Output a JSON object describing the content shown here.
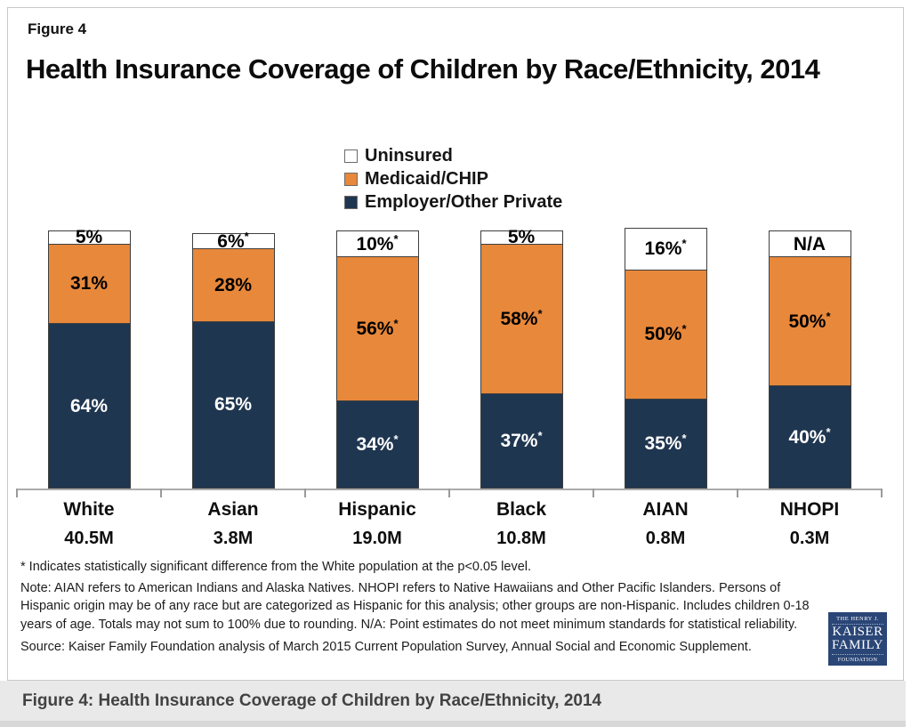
{
  "header": {
    "figure_label": "Figure 4",
    "title": "Health Insurance Coverage of Children by Race/Ethnicity, 2014"
  },
  "legend": {
    "items": [
      {
        "label": "Uninsured",
        "color": "#FFFFFF"
      },
      {
        "label": "Medicaid/CHIP",
        "color": "#E8883B"
      },
      {
        "label": "Employer/Other Private",
        "color": "#1F3650"
      }
    ]
  },
  "chart_data": {
    "type": "bar",
    "stacked": true,
    "title": "Health Insurance Coverage of Children by Race/Ethnicity, 2014",
    "unit": "percent of children",
    "categories": [
      "White",
      "Asian",
      "Hispanic",
      "Black",
      "AIAN",
      "NHOPI"
    ],
    "category_populations": [
      "40.5M",
      "3.8M",
      "19.0M",
      "10.8M",
      "0.8M",
      "0.3M"
    ],
    "series": [
      {
        "name": "Employer/Other Private",
        "color": "#1F3650",
        "label_color": "#FFFFFF",
        "values": [
          64,
          65,
          34,
          37,
          35,
          40
        ],
        "labels": [
          "64%",
          "65%",
          "34%*",
          "37%*",
          "35%*",
          "40%*"
        ]
      },
      {
        "name": "Medicaid/CHIP",
        "color": "#E8883B",
        "label_color": "#000000",
        "values": [
          31,
          28,
          56,
          58,
          50,
          50
        ],
        "labels": [
          "31%",
          "28%",
          "56%*",
          "58%*",
          "50%*",
          "50%*"
        ]
      },
      {
        "name": "Uninsured",
        "color": "#FFFFFF",
        "label_color": "#000000",
        "values": [
          5,
          6,
          10,
          5,
          16,
          null
        ],
        "labels": [
          "5%",
          "6%*",
          "10%*",
          "5%",
          "16%*",
          "N/A"
        ]
      }
    ],
    "na_bar_height_pct": 10,
    "ylim": [
      0,
      100
    ],
    "gridlines": false,
    "legend_position": "top-center",
    "annotation_star_meaning": "* Indicates statistically significant difference from the White population at the p<0.05 level."
  },
  "footnotes": {
    "star": "* Indicates statistically significant difference from the White population at the p<0.05 level.",
    "note": "Note: AIAN refers to American Indians and Alaska Natives. NHOPI refers to Native Hawaiians and Other Pacific Islanders. Persons of Hispanic origin may be of any race but are categorized as Hispanic for this analysis; other groups are non-Hispanic. Includes children 0-18 years of age. Totals may not sum to 100% due to rounding. N/A: Point estimates do not meet minimum standards for statistical reliability.",
    "source": "Source: Kaiser Family Foundation analysis of March 2015 Current Population Survey, Annual Social and Economic Supplement."
  },
  "logo": {
    "line1": "THE HENRY J.",
    "line2": "KAISER",
    "line3": "FAMILY",
    "line4": "FOUNDATION",
    "color": "#2A4677"
  },
  "caption_bar": {
    "text": "Figure 4: Health Insurance Coverage of Children by Race/Ethnicity, 2014"
  },
  "colors": {
    "employer": "#1F3650",
    "medicaid": "#E8883B",
    "uninsured": "#FFFFFF",
    "segment_border": "#3F3F3F",
    "axis": "#ABABAB",
    "caption_bg": "#E9E9E9"
  }
}
